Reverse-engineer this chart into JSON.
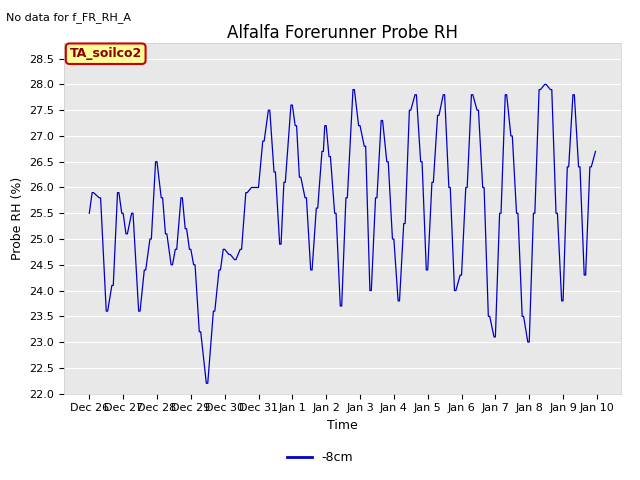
{
  "title": "Alfalfa Forerunner Probe RH",
  "top_left_text": "No data for f_FR_RH_A",
  "xlabel": "Time",
  "ylabel": "Probe RH (%)",
  "legend_label": "-8cm",
  "legend_color": "#0000cc",
  "line_color": "#0000cc",
  "fig_bg_color": "#ffffff",
  "plot_bg_color": "#e8e8e8",
  "grid_color": "#ffffff",
  "ylim": [
    22.0,
    28.8
  ],
  "yticks": [
    22.0,
    22.5,
    23.0,
    23.5,
    24.0,
    24.5,
    25.0,
    25.5,
    26.0,
    26.5,
    27.0,
    27.5,
    28.0,
    28.5
  ],
  "annotation_box": {
    "text": "TA_soilco2",
    "facecolor": "#ffff99",
    "edgecolor": "#cc0000",
    "fontsize": 9,
    "fontweight": "bold"
  },
  "x_tick_labels": [
    "Dec 26",
    "Dec 27",
    "Dec 28",
    "Dec 29",
    "Dec 30",
    "Dec 31",
    "Jan 1",
    "Jan 2",
    "Jan 3",
    "Jan 4",
    "Jan 5",
    "Jan 6",
    "Jan 7",
    "Jan 8",
    "Jan 9",
    "Jan 10"
  ],
  "title_fontsize": 12,
  "axis_label_fontsize": 9,
  "tick_fontsize": 8
}
